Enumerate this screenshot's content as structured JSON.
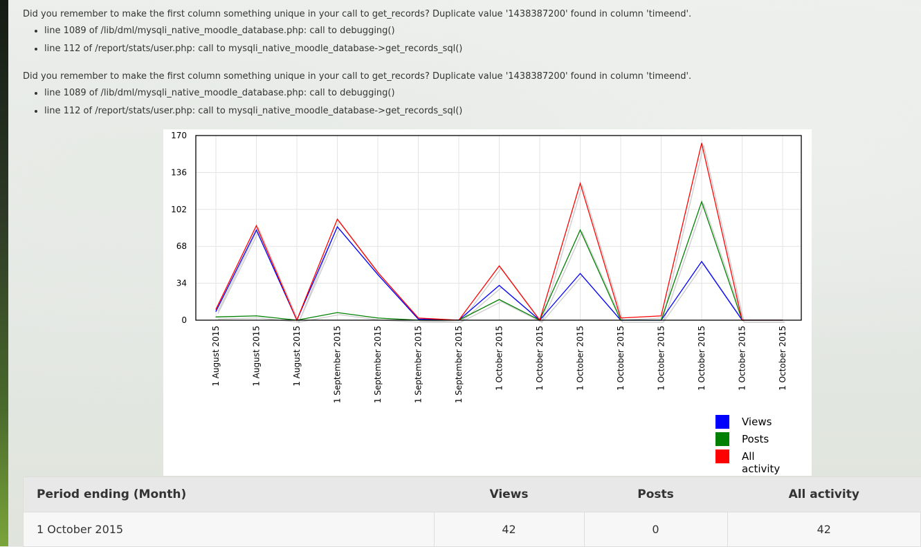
{
  "debug_messages": [
    {
      "message": "Did you remember to make the first column something unique in your call to get_records? Duplicate value '1438387200' found in column 'timeend'.",
      "trace": [
        "line 1089 of /lib/dml/mysqli_native_moodle_database.php: call to debugging()",
        "line 112 of /report/stats/user.php: call to mysqli_native_moodle_database->get_records_sql()"
      ]
    },
    {
      "message": "Did you remember to make the first column something unique in your call to get_records? Duplicate value '1438387200' found in column 'timeend'.",
      "trace": [
        "line 1089 of /lib/dml/mysqli_native_moodle_database.php: call to debugging()",
        "line 112 of /report/stats/user.php: call to mysqli_native_moodle_database->get_records_sql()"
      ]
    }
  ],
  "chart_data": {
    "type": "line",
    "categories": [
      "1 August 2015",
      "1 August 2015",
      "1 August 2015",
      "1 September 2015",
      "1 September 2015",
      "1 September 2015",
      "1 September 2015",
      "1 October 2015",
      "1 October 2015",
      "1 October 2015",
      "1 October 2015",
      "1 October 2015",
      "1 October 2015",
      "1 October 2015",
      "1 October 2015"
    ],
    "ylim": [
      0,
      170
    ],
    "yticks": [
      0,
      34,
      68,
      102,
      136,
      170
    ],
    "grid": true,
    "legend_position": "bottom-right",
    "series": [
      {
        "name": "Views",
        "color": "#0000ff",
        "values": [
          8,
          83,
          0,
          86,
          42,
          1,
          0,
          32,
          0,
          43,
          0,
          0,
          54,
          0,
          0
        ]
      },
      {
        "name": "Posts",
        "color": "#008000",
        "values": [
          3,
          4,
          0,
          7,
          2,
          0,
          0,
          19,
          0,
          83,
          0,
          0,
          109,
          0,
          0
        ]
      },
      {
        "name": "All activity",
        "color": "#ff0000",
        "values": [
          10,
          87,
          0,
          93,
          44,
          2,
          0,
          50,
          0,
          126,
          2,
          4,
          163,
          0,
          0
        ]
      }
    ]
  },
  "table": {
    "headers": [
      "Period ending (Month)",
      "Views",
      "Posts",
      "All activity"
    ],
    "rows": [
      [
        "1 October 2015",
        "42",
        "0",
        "42"
      ]
    ]
  }
}
